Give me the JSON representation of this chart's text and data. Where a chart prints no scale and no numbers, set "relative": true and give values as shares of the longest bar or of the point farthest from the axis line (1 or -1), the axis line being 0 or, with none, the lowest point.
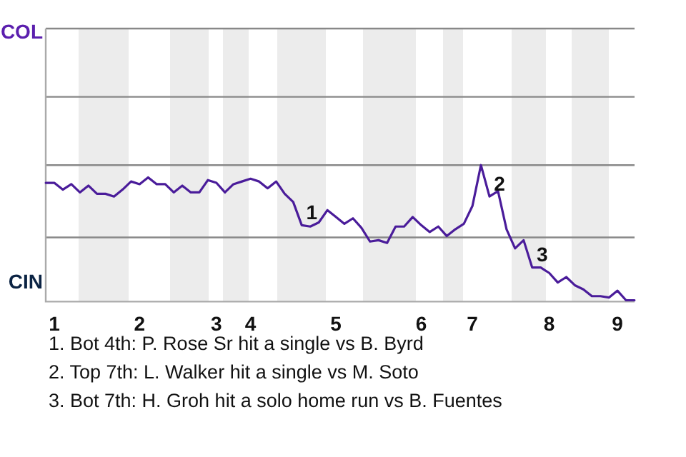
{
  "chart_data": {
    "type": "line",
    "relative": true,
    "categories": [
      null,
      "1",
      null,
      null,
      null,
      null,
      null,
      null,
      null,
      null,
      null,
      "2",
      null,
      null,
      null,
      null,
      null,
      null,
      null,
      null,
      "3",
      null,
      null,
      null,
      "4",
      null,
      null,
      null,
      null,
      null,
      null,
      null,
      null,
      null,
      "5",
      null,
      null,
      null,
      null,
      null,
      null,
      null,
      null,
      null,
      "6",
      null,
      null,
      null,
      null,
      null,
      "7",
      null,
      null,
      null,
      null,
      null,
      null,
      null,
      null,
      "8",
      null,
      null,
      null,
      null,
      null,
      null,
      null,
      "9",
      null,
      null
    ],
    "series": [
      {
        "color": "#4a1c9a",
        "values": [
          0.87,
          0.87,
          0.82,
          0.86,
          0.8,
          0.85,
          0.79,
          0.79,
          0.77,
          0.82,
          0.88,
          0.86,
          0.91,
          0.86,
          0.86,
          0.8,
          0.85,
          0.8,
          0.8,
          0.89,
          0.87,
          0.8,
          0.86,
          0.88,
          0.9,
          0.88,
          0.83,
          0.88,
          0.79,
          0.73,
          0.56,
          0.55,
          0.58,
          0.67,
          0.62,
          0.57,
          0.61,
          0.54,
          0.44,
          0.45,
          0.43,
          0.55,
          0.55,
          0.62,
          0.56,
          0.51,
          0.55,
          0.48,
          0.53,
          0.57,
          0.7,
          1,
          0.77,
          0.81,
          0.53,
          0.39,
          0.45,
          0.25,
          0.25,
          0.21,
          0.14,
          0.18,
          0.12,
          0.09,
          0.04,
          0.04,
          0.03,
          0.08,
          0.01,
          0.01
        ]
      }
    ],
    "ref_lines": [
      {
        "axis": "y",
        "value": 0.47,
        "color": "#888888"
      }
    ],
    "marker": "none",
    "line_style": "solid",
    "legend": false,
    "annotations": [
      "COL",
      "CIN",
      "1",
      "2",
      "3",
      "1. Bot 4th: P. Rose Sr hit a single vs B. Byrd",
      "2. Top 7th: L. Walker hit a single vs M. Soto",
      "3. Bot 7th: H. Groh hit a solo home run vs B. Fuentes"
    ]
  }
}
